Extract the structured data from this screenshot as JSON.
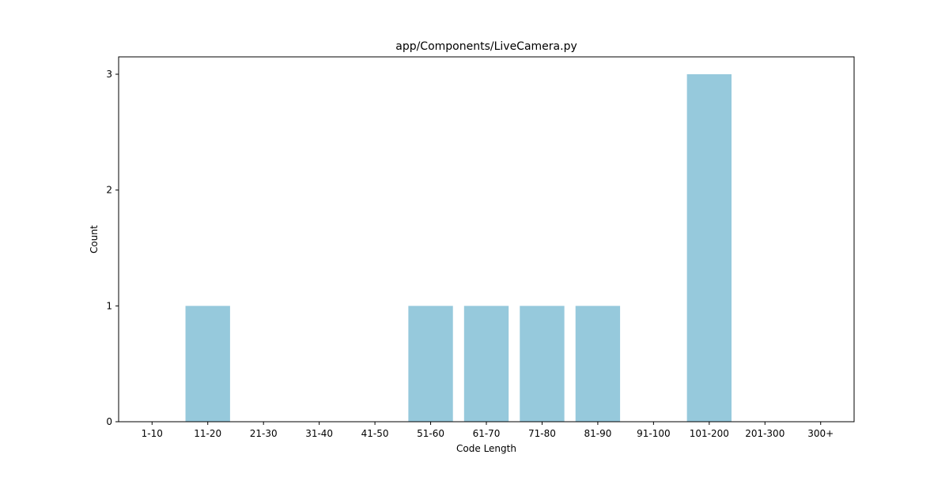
{
  "chart_data": {
    "type": "bar",
    "title": "app/Components/LiveCamera.py",
    "xlabel": "Code Length",
    "ylabel": "Count",
    "categories": [
      "1-10",
      "11-20",
      "21-30",
      "31-40",
      "41-50",
      "51-60",
      "61-70",
      "71-80",
      "81-90",
      "91-100",
      "101-200",
      "201-300",
      "300+"
    ],
    "values": [
      0,
      1,
      0,
      0,
      0,
      1,
      1,
      1,
      1,
      0,
      3,
      0,
      0
    ],
    "ylim": [
      0,
      3.15
    ],
    "yticks": [
      0,
      1,
      2,
      3
    ],
    "grid": false,
    "legend": "none",
    "bar_color": "#96c9dc"
  }
}
